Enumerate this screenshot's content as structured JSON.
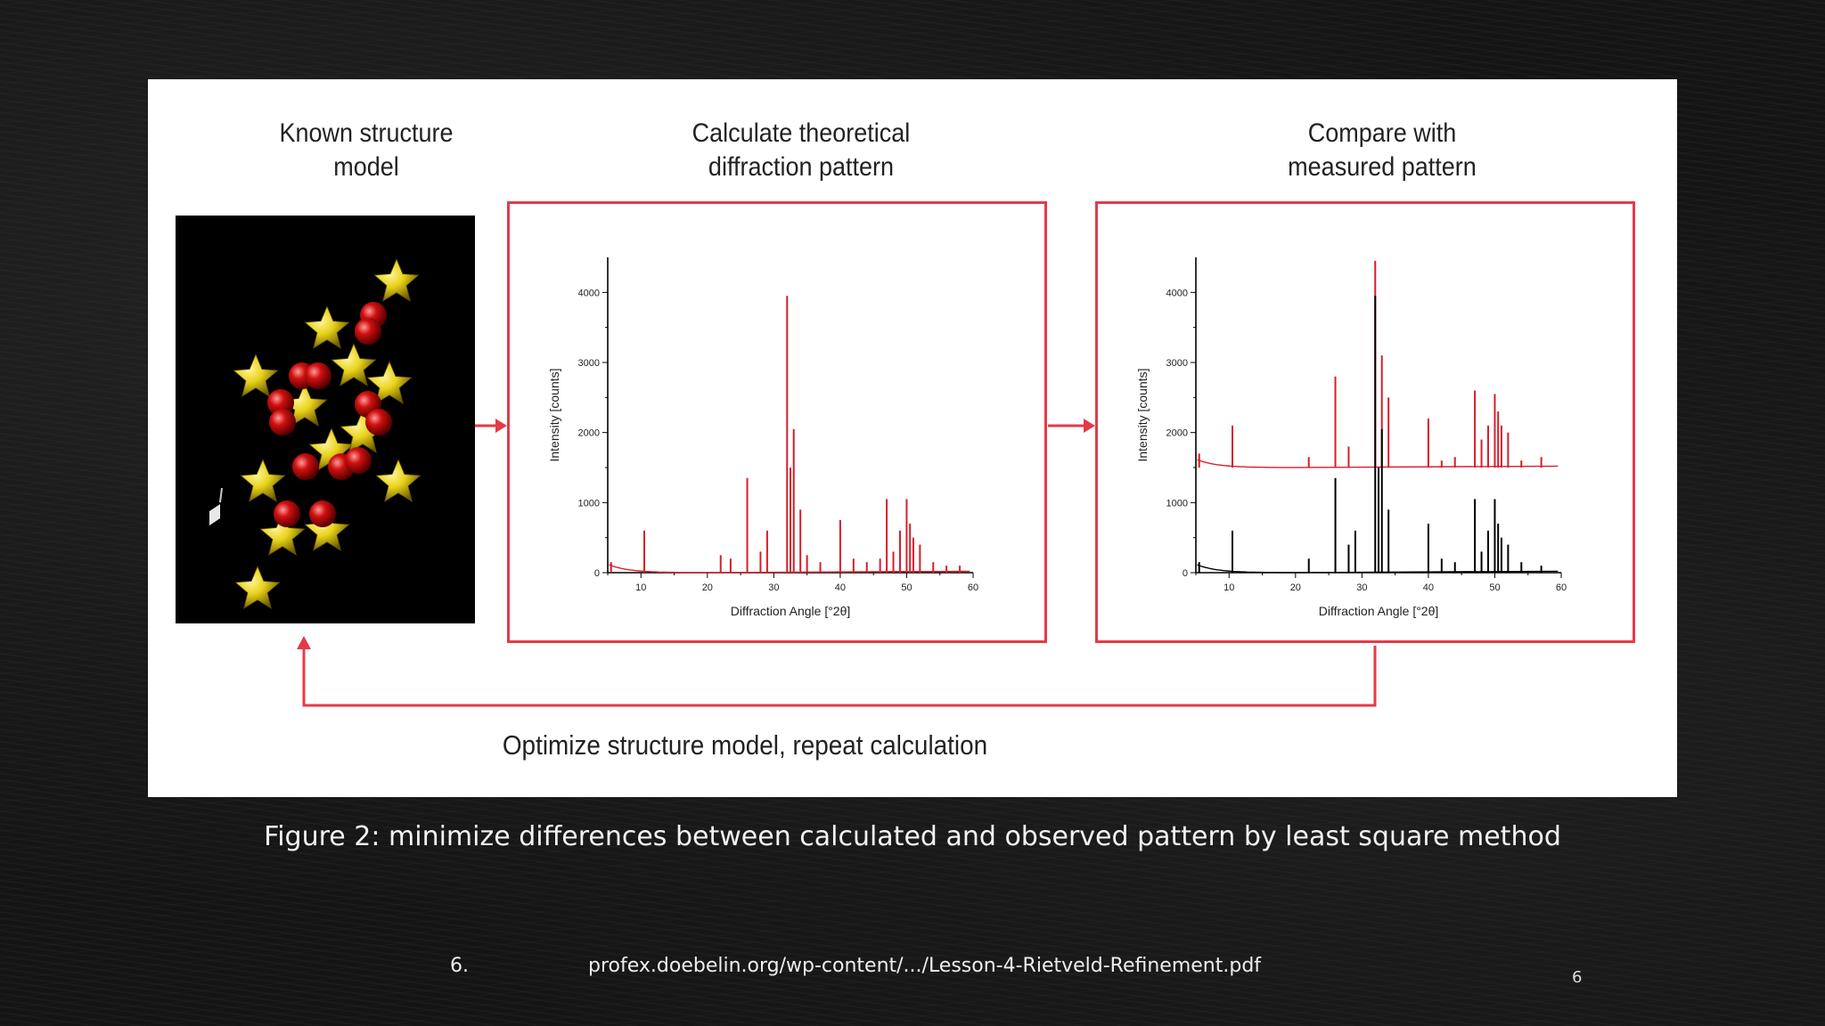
{
  "headings": {
    "known_line1": "Known structure",
    "known_line2": "model",
    "calc_line1": "Calculate theoretical",
    "calc_line2": "diffraction pattern",
    "compare_line1": "Compare with",
    "compare_line2": "measured pattern"
  },
  "loop_caption": "Optimize structure model, repeat calculation",
  "figure_caption": "Figure 2: minimize differences between calculated and observed pattern by least square method",
  "reference": {
    "number": "6.",
    "url": "profex.doebelin.org/wp-content/.../Lesson-4-Rietveld-Refinement.pdf"
  },
  "slide_number": "6",
  "colors": {
    "accent_red": "#e63a48",
    "calc_red": "#d81e2a",
    "measured_black": "#000000",
    "atom_yellow": "#e8d21a",
    "atom_red": "#d01010"
  },
  "chart_data": [
    {
      "type": "line",
      "xlabel": "Diffraction Angle [°2θ]",
      "ylabel": "Intensity [counts]",
      "xlim": [
        5,
        60
      ],
      "ylim": [
        0,
        4500
      ],
      "x_ticks": [
        10,
        20,
        30,
        40,
        50,
        60
      ],
      "y_ticks": [
        0,
        1000,
        2000,
        3000,
        4000
      ],
      "series": [
        {
          "color": "#d81e2a",
          "baseline": 0,
          "peaks": [
            [
              5.5,
              150
            ],
            [
              10.5,
              600
            ],
            [
              22,
              250
            ],
            [
              23.5,
              200
            ],
            [
              26,
              1350
            ],
            [
              28,
              300
            ],
            [
              29,
              600
            ],
            [
              32,
              3950
            ],
            [
              32.5,
              1500
            ],
            [
              33,
              2050
            ],
            [
              34,
              900
            ],
            [
              35,
              250
            ],
            [
              37,
              150
            ],
            [
              40,
              750
            ],
            [
              42,
              200
            ],
            [
              44,
              150
            ],
            [
              46,
              200
            ],
            [
              47,
              1050
            ],
            [
              48,
              300
            ],
            [
              49,
              600
            ],
            [
              50,
              1050
            ],
            [
              50.5,
              700
            ],
            [
              51,
              500
            ],
            [
              52,
              400
            ],
            [
              54,
              150
            ],
            [
              56,
              100
            ],
            [
              58,
              100
            ]
          ]
        }
      ]
    },
    {
      "type": "line",
      "xlabel": "Diffraction Angle [°2θ]",
      "ylabel": "Intensity [counts]",
      "xlim": [
        5,
        60
      ],
      "ylim": [
        0,
        4500
      ],
      "x_ticks": [
        10,
        20,
        30,
        40,
        50,
        60
      ],
      "y_ticks": [
        0,
        1000,
        2000,
        3000,
        4000
      ],
      "series": [
        {
          "color": "#d81e2a",
          "baseline": 1500,
          "peaks": [
            [
              5.5,
              1700
            ],
            [
              10.5,
              2100
            ],
            [
              22,
              1650
            ],
            [
              26,
              2800
            ],
            [
              28,
              1800
            ],
            [
              32,
              4450
            ],
            [
              33,
              3100
            ],
            [
              34,
              2500
            ],
            [
              40,
              2200
            ],
            [
              42,
              1600
            ],
            [
              44,
              1650
            ],
            [
              47,
              2600
            ],
            [
              48,
              1900
            ],
            [
              49,
              2100
            ],
            [
              50,
              2550
            ],
            [
              50.5,
              2300
            ],
            [
              51,
              2100
            ],
            [
              52,
              2000
            ],
            [
              54,
              1600
            ],
            [
              57,
              1650
            ]
          ]
        },
        {
          "color": "#000000",
          "baseline": 0,
          "peaks": [
            [
              5.5,
              150
            ],
            [
              10.5,
              600
            ],
            [
              22,
              200
            ],
            [
              26,
              1350
            ],
            [
              28,
              400
            ],
            [
              29,
              600
            ],
            [
              32,
              3950
            ],
            [
              32.5,
              1500
            ],
            [
              33,
              2050
            ],
            [
              34,
              900
            ],
            [
              40,
              700
            ],
            [
              42,
              200
            ],
            [
              44,
              150
            ],
            [
              47,
              1050
            ],
            [
              48,
              300
            ],
            [
              49,
              600
            ],
            [
              50,
              1050
            ],
            [
              50.5,
              700
            ],
            [
              51,
              500
            ],
            [
              52,
              400
            ],
            [
              54,
              150
            ],
            [
              57,
              100
            ]
          ]
        }
      ]
    }
  ]
}
